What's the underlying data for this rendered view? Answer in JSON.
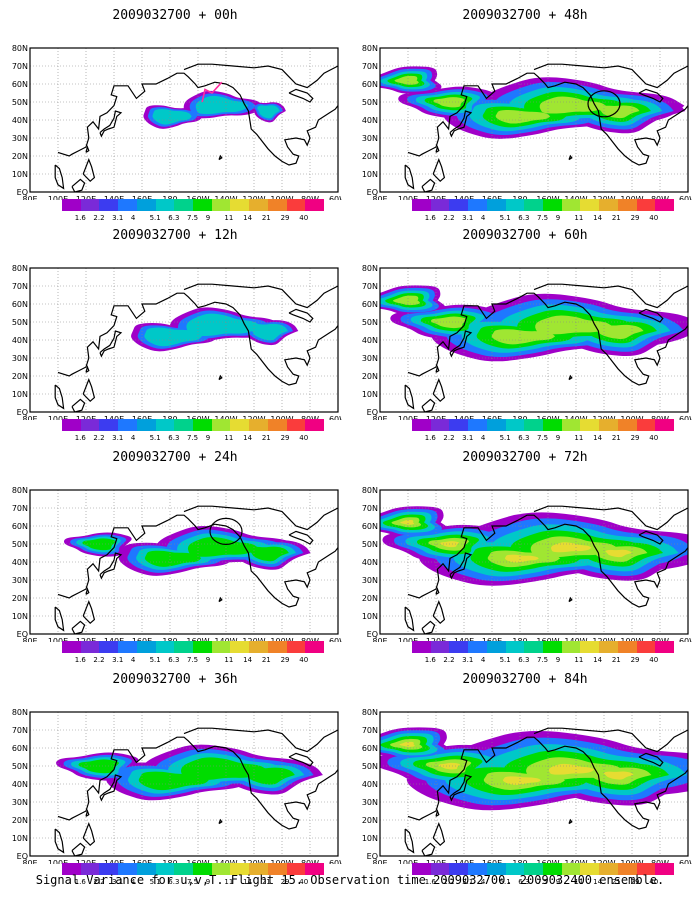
{
  "panels": [
    {
      "title": "2009032700 + 00h",
      "intensity": 0,
      "circle": false,
      "flight_track": true
    },
    {
      "title": "2009032700 + 12h",
      "intensity": 1,
      "circle": false,
      "flight_track": false
    },
    {
      "title": "2009032700 + 24h",
      "intensity": 2,
      "circle": true,
      "flight_track": false
    },
    {
      "title": "2009032700 + 36h",
      "intensity": 3,
      "circle": false,
      "flight_track": false
    },
    {
      "title": "2009032700 + 48h",
      "intensity": 4,
      "circle": true,
      "flight_track": false
    },
    {
      "title": "2009032700 + 60h",
      "intensity": 5,
      "circle": false,
      "flight_track": false
    },
    {
      "title": "2009032700 + 72h",
      "intensity": 6,
      "circle": false,
      "flight_track": false
    },
    {
      "title": "2009032700 + 84h",
      "intensity": 7,
      "circle": false,
      "flight_track": false
    }
  ],
  "lat_labels": [
    "80N",
    "70N",
    "60N",
    "50N",
    "40N",
    "30N",
    "20N",
    "10N",
    "EQ"
  ],
  "lon_labels": [
    "80E",
    "100E",
    "120E",
    "140E",
    "160E",
    "180",
    "160W",
    "140W",
    "120W",
    "100W",
    "80W",
    "60W"
  ],
  "colorbar": {
    "levels": [
      "1.6",
      "2.2",
      "3.1",
      "4",
      "5.1",
      "6.3",
      "7.5",
      "9",
      "11",
      "14",
      "21",
      "29",
      "40"
    ],
    "colors": [
      "#a000c8",
      "#7a2ad8",
      "#3c3cf0",
      "#1e78ff",
      "#00a0dc",
      "#00c8c8",
      "#00d28c",
      "#00dc00",
      "#a0e632",
      "#e6dc32",
      "#e6af2d",
      "#f08228",
      "#fa3c3c",
      "#f00082"
    ]
  },
  "footer": "Signal Variance for u,v,T. Flight 15. Observation time 2009032700. 2009032400 ensemble."
}
